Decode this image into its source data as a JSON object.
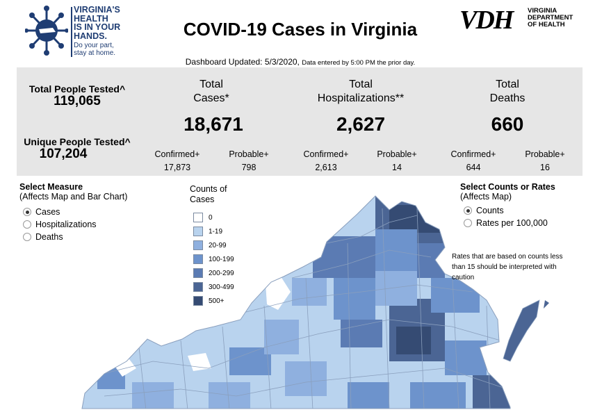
{
  "header": {
    "slogan_lines": [
      "VIRGINIA'S",
      "HEALTH",
      "IS IN YOUR",
      "HANDS."
    ],
    "slogan_sub_lines": [
      "Do your part,",
      "stay at home."
    ],
    "title": "COVID-19 Cases in Virginia",
    "vdh_mark": "VDH",
    "vdh_words": [
      "VIRGINIA",
      "DEPARTMENT",
      "OF HEALTH"
    ]
  },
  "updated": {
    "main": "Dashboard Updated: 5/3/2020,",
    "note": "Data entered by 5:00 PM the prior day."
  },
  "tested": {
    "total_label": "Total People Tested^",
    "total_value": "119,065",
    "unique_label": "Unique People Tested^",
    "unique_value": "107,204"
  },
  "cases": {
    "label_1": "Total",
    "label_2": "Cases*",
    "value": "18,671",
    "confirmed_label": "Confirmed+",
    "confirmed_value": "17,873",
    "probable_label": "Probable+",
    "probable_value": "798"
  },
  "hospitalizations": {
    "label_1": "Total",
    "label_2": "Hospitalizations**",
    "value": "2,627",
    "confirmed_label": "Confirmed+",
    "confirmed_value": "2,613",
    "probable_label": "Probable+",
    "probable_value": "14"
  },
  "deaths": {
    "label_1": "Total",
    "label_2": "Deaths",
    "value": "660",
    "confirmed_label": "Confirmed+",
    "confirmed_value": "644",
    "probable_label": "Probable+",
    "probable_value": "16"
  },
  "measure": {
    "title": "Select Measure",
    "subtitle": "(Affects Map and Bar Chart)",
    "options": [
      "Cases",
      "Hospitalizations",
      "Deaths"
    ],
    "selected": "Cases"
  },
  "counts_rates": {
    "title": "Select Counts or Rates",
    "subtitle": "(Affects Map)",
    "options": [
      "Counts",
      "Rates per 100,000"
    ],
    "selected": "Counts"
  },
  "legend": {
    "title_1": "Counts of",
    "title_2": "Cases",
    "items": [
      {
        "label": "0",
        "color": "#ffffff"
      },
      {
        "label": "1-19",
        "color": "#b9d3ee"
      },
      {
        "label": "20-99",
        "color": "#8fb0df"
      },
      {
        "label": "100-199",
        "color": "#6d93cc"
      },
      {
        "label": "200-299",
        "color": "#5b7bb3"
      },
      {
        "label": "300-499",
        "color": "#4b6594"
      },
      {
        "label": "500+",
        "color": "#354b73"
      }
    ]
  },
  "note": {
    "lines": [
      "Rates that are based on counts less",
      "than 15 should be interpreted with",
      "caution"
    ]
  },
  "colors": {
    "panel_bg": "#e6e6e6",
    "brand_navy": "#1f3d73",
    "map_border": "#8a9fbd"
  }
}
